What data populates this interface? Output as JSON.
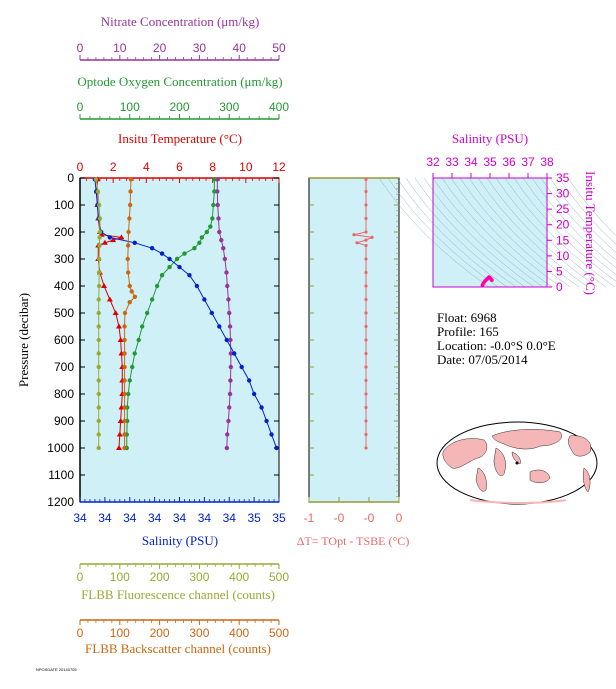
{
  "float_info": {
    "float_line": "Float:  6968",
    "profile_line": "Profile:  165",
    "location_line": "Location:  -0.0°S   0.0°E",
    "date_line": "Date:  07/05/2014"
  },
  "footer_text": "NPOSDATE 20140705",
  "colors": {
    "nitrate": "#993399",
    "oxygen": "#229933",
    "temperature": "#dd0000",
    "salinity": "#0022cc",
    "fluorescence": "#99aa33",
    "backscatter": "#cc6611",
    "delta_t": "#ee6666",
    "ts_axis": "#cc00cc",
    "panel_bg": "#d0f0f8"
  },
  "chart_data": [
    {
      "type": "line",
      "panel": "profiles",
      "ylabel": "Pressure (decibar)",
      "ylim": [
        1200,
        0
      ],
      "yticks": [
        "0",
        "100",
        "200",
        "300",
        "400",
        "500",
        "600",
        "700",
        "800",
        "900",
        "1000",
        "1100",
        "1200"
      ],
      "axes": {
        "nitrate": {
          "label": "Nitrate Concentration (μm/kg)",
          "ticks": [
            "0",
            "10",
            "20",
            "30",
            "40",
            "50"
          ],
          "range": [
            0,
            50
          ]
        },
        "oxygen": {
          "label": "Optode Oxygen Concentration (μm/kg)",
          "ticks": [
            "0",
            "100",
            "200",
            "300",
            "400"
          ],
          "range": [
            0,
            400
          ]
        },
        "temperature": {
          "label": "Insitu Temperature (°C)",
          "ticks": [
            "0",
            "2",
            "4",
            "6",
            "8",
            "10",
            "12"
          ],
          "range": [
            0,
            12
          ]
        },
        "salinity": {
          "label": "Salinity (PSU)",
          "ticks": [
            "34",
            "34",
            "34",
            "34",
            "34",
            "34",
            "34",
            "35",
            "35"
          ],
          "range": [
            34.2,
            35.0
          ]
        },
        "fluorescence": {
          "label": "FLBB Fluorescence channel (counts)",
          "ticks": [
            "0",
            "100",
            "200",
            "300",
            "400",
            "500"
          ],
          "range": [
            0,
            500
          ]
        },
        "backscatter": {
          "label": "FLBB Backscatter channel (counts)",
          "ticks": [
            "0",
            "100",
            "200",
            "300",
            "400",
            "500"
          ],
          "range": [
            0,
            500
          ]
        }
      },
      "series": [
        {
          "key": "nitrate",
          "p": [
            5,
            50,
            100,
            150,
            200,
            230,
            260,
            300,
            350,
            400,
            450,
            500,
            550,
            600,
            650,
            700,
            750,
            800,
            850,
            900,
            950,
            1000
          ],
          "v": [
            34.5,
            34.5,
            34.6,
            34.8,
            35.0,
            35.5,
            36.0,
            36.4,
            36.8,
            37.0,
            37.3,
            37.5,
            37.7,
            37.8,
            37.9,
            37.9,
            37.8,
            37.7,
            37.5,
            37.3,
            37.0,
            36.9
          ]
        },
        {
          "key": "oxygen",
          "p": [
            5,
            50,
            100,
            150,
            180,
            200,
            220,
            240,
            260,
            280,
            300,
            330,
            360,
            400,
            450,
            500,
            550,
            600,
            650,
            700,
            750,
            800,
            850,
            900,
            950,
            1000
          ],
          "v": [
            270,
            270,
            268,
            266,
            262,
            255,
            245,
            240,
            230,
            210,
            195,
            180,
            165,
            155,
            145,
            135,
            125,
            118,
            110,
            105,
            100,
            97,
            95,
            95,
            94,
            94
          ]
        },
        {
          "key": "temperature",
          "p": [
            5,
            50,
            100,
            150,
            200,
            210,
            220,
            230,
            240,
            250,
            300,
            350,
            400,
            450,
            500,
            550,
            600,
            650,
            700,
            750,
            800,
            850,
            900,
            950,
            1000
          ],
          "v": [
            1.05,
            1.02,
            1.05,
            1.1,
            1.2,
            1.3,
            2.5,
            2.0,
            1.5,
            1.1,
            1.1,
            1.2,
            1.45,
            1.8,
            2.15,
            2.35,
            2.45,
            2.5,
            2.55,
            2.55,
            2.55,
            2.5,
            2.45,
            2.4,
            2.35
          ]
        },
        {
          "key": "salinity",
          "p": [
            5,
            50,
            100,
            150,
            200,
            220,
            240,
            260,
            280,
            300,
            330,
            360,
            400,
            450,
            500,
            550,
            600,
            650,
            700,
            750,
            800,
            850,
            900,
            950,
            1000
          ],
          "v": [
            34.26,
            34.265,
            34.27,
            34.275,
            34.285,
            34.32,
            34.42,
            34.49,
            34.53,
            34.56,
            34.6,
            34.64,
            34.67,
            34.7,
            34.73,
            34.76,
            34.79,
            34.82,
            34.85,
            34.88,
            34.9,
            34.93,
            34.95,
            34.97,
            34.99
          ]
        },
        {
          "key": "fluorescence",
          "p": [
            5,
            50,
            100,
            150,
            200,
            220,
            250,
            300,
            350,
            400,
            450,
            500,
            550,
            600,
            650,
            700,
            750,
            800,
            850,
            900,
            950,
            1000
          ],
          "v": [
            40,
            45,
            48,
            50,
            50,
            49,
            49,
            48,
            48,
            48,
            47,
            47,
            47,
            47,
            47,
            47,
            47,
            47,
            47,
            47,
            47,
            47
          ]
        },
        {
          "key": "backscatter",
          "p": [
            5,
            50,
            100,
            150,
            200,
            250,
            300,
            350,
            400,
            420,
            440,
            460,
            500,
            550,
            600,
            650,
            700,
            750,
            800,
            850,
            900,
            950,
            1000
          ],
          "v": [
            128,
            127,
            126,
            124,
            122,
            121,
            120,
            121,
            125,
            130,
            138,
            125,
            113,
            112,
            112,
            112,
            112,
            112,
            112,
            112,
            112,
            112,
            112
          ]
        }
      ]
    },
    {
      "type": "line",
      "panel": "delta_t",
      "xlabel": "ΔT= TOpt - TSBE (°C)",
      "xticks": [
        "-1",
        "-0",
        "-0",
        "0",
        "0"
      ],
      "ylim": [
        1200,
        0
      ],
      "series": [
        {
          "key": "delta_t",
          "p": [
            5,
            50,
            100,
            150,
            200,
            210,
            220,
            230,
            240,
            250,
            300,
            350,
            400,
            450,
            500,
            550,
            600,
            650,
            700,
            750,
            800,
            850,
            900,
            950,
            1000
          ],
          "v": [
            -0.05,
            -0.05,
            -0.05,
            -0.05,
            -0.05,
            -0.25,
            0.05,
            -0.05,
            -0.2,
            -0.05,
            -0.05,
            -0.05,
            -0.05,
            -0.05,
            -0.05,
            -0.05,
            -0.05,
            -0.05,
            -0.05,
            -0.05,
            -0.05,
            -0.05,
            -0.05,
            -0.05,
            -0.05
          ]
        }
      ]
    },
    {
      "type": "scatter",
      "panel": "ts_diagram",
      "xlabel": "Salinity (PSU)",
      "ylabel": "Insitu Temperature (°C)",
      "xticks": [
        "32",
        "33",
        "34",
        "35",
        "36",
        "37",
        "38"
      ],
      "yticks": [
        "0",
        "5",
        "10",
        "15",
        "20",
        "25",
        "30",
        "35"
      ],
      "xlim": [
        32,
        38
      ],
      "ylim": [
        0,
        35
      ],
      "series": [
        {
          "key": "ts",
          "s": [
            34.6,
            34.62,
            34.65,
            34.7,
            34.75,
            34.8,
            34.85,
            34.9,
            34.95,
            35.0,
            35.05,
            35.1
          ],
          "t": [
            0.5,
            0.8,
            1.2,
            1.6,
            2.0,
            2.3,
            2.6,
            2.9,
            3.2,
            3.0,
            2.6,
            2.2
          ]
        }
      ]
    }
  ]
}
